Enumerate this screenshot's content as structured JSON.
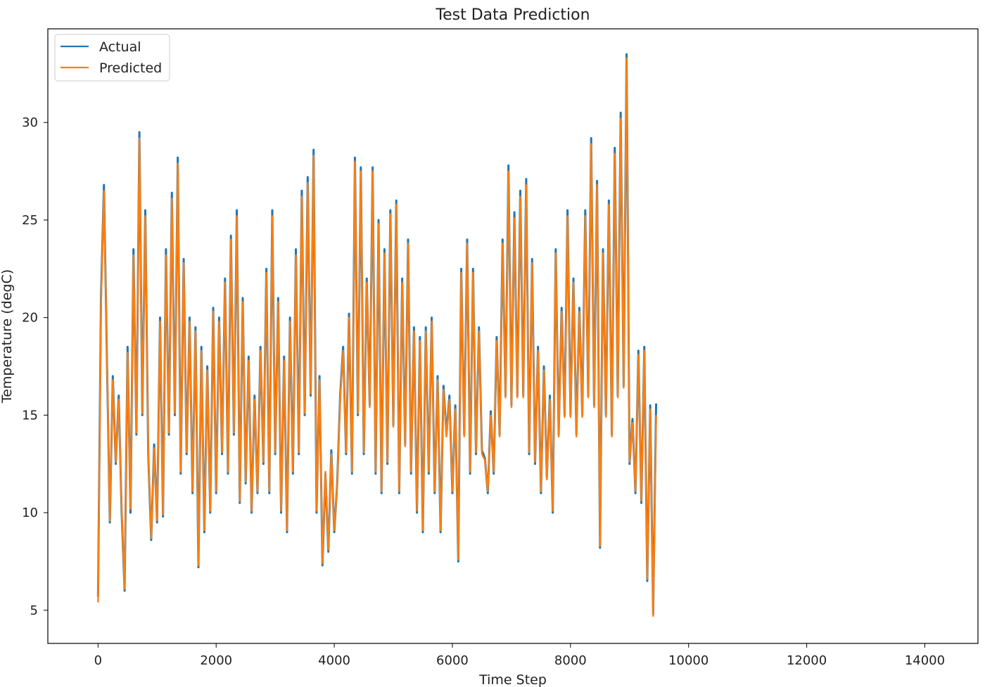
{
  "chart_data": {
    "type": "line",
    "title": "Test Data Prediction",
    "xlabel": "Time Step",
    "ylabel": "Temperature (degC)",
    "xlim": [
      -850,
      14900
    ],
    "ylim": [
      3.3,
      34.8
    ],
    "xticks": [
      0,
      2000,
      4000,
      6000,
      8000,
      10000,
      12000,
      14000
    ],
    "yticks": [
      5,
      10,
      15,
      20,
      25,
      30
    ],
    "grid": false,
    "legend": {
      "placement": "top-left"
    },
    "series": [
      {
        "name": "Actual",
        "color": "#1f77b4"
      },
      {
        "name": "Predicted",
        "color": "#ff7f0e"
      }
    ],
    "x_step": 50,
    "actual": [
      5.7,
      21.0,
      26.8,
      18.0,
      9.5,
      17.0,
      12.5,
      16.0,
      10.0,
      6.0,
      18.5,
      10.0,
      23.5,
      14.0,
      29.5,
      15.0,
      25.5,
      13.0,
      8.6,
      13.5,
      9.5,
      20.0,
      9.8,
      23.5,
      14.0,
      26.4,
      15.0,
      28.2,
      12.0,
      23.0,
      13.0,
      20.0,
      11.0,
      19.5,
      7.2,
      18.5,
      9.0,
      17.5,
      10.0,
      20.5,
      11.0,
      20.0,
      13.0,
      22.0,
      12.0,
      24.2,
      14.0,
      25.5,
      10.5,
      21.0,
      11.5,
      18.0,
      10.0,
      16.0,
      11.0,
      18.5,
      12.5,
      22.5,
      11.0,
      25.5,
      13.0,
      21.0,
      10.0,
      18.0,
      9.0,
      20.0,
      12.0,
      23.5,
      13.0,
      26.5,
      15.0,
      27.2,
      16.0,
      28.6,
      10.0,
      17.0,
      7.3,
      12.0,
      8.0,
      13.2,
      9.0,
      11.5,
      16.0,
      18.5,
      13.0,
      20.2,
      12.0,
      28.2,
      15.0,
      27.7,
      13.0,
      22.0,
      15.5,
      27.7,
      12.0,
      25.0,
      11.0,
      23.5,
      12.5,
      25.5,
      14.5,
      26.0,
      11.0,
      22.0,
      13.5,
      24.0,
      12.0,
      19.5,
      10.0,
      19.0,
      9.0,
      19.5,
      12.0,
      20.0,
      11.0,
      17.0,
      9.0,
      16.5,
      14.0,
      16.0,
      11.0,
      15.5,
      7.5,
      22.5,
      14.0,
      24.0,
      12.0,
      22.5,
      13.0,
      19.5,
      13.2,
      12.8,
      11.0,
      15.2,
      12.0,
      19.0,
      14.0,
      24.0,
      16.0,
      27.8,
      15.5,
      25.4,
      16.0,
      26.5,
      16.0,
      27.1,
      13.0,
      23.0,
      12.5,
      18.5,
      11.0,
      17.5,
      11.8,
      16.0,
      10.0,
      23.5,
      14.0,
      20.5,
      15.0,
      25.5,
      15.0,
      22.0,
      14.0,
      20.5,
      15.0,
      25.5,
      16.0,
      29.2,
      15.5,
      27.0,
      8.2,
      23.5,
      15.0,
      26.0,
      14.0,
      28.7,
      16.0,
      30.5,
      16.5,
      33.5,
      12.5,
      14.8,
      11.0,
      18.3,
      10.5,
      18.5,
      6.5,
      15.5,
      4.8,
      15.6
    ],
    "predicted": [
      5.4,
      20.5,
      26.5,
      18.2,
      9.6,
      16.8,
      12.6,
      15.8,
      10.2,
      6.1,
      18.2,
      10.2,
      23.2,
      14.1,
      29.2,
      15.1,
      25.2,
      13.1,
      8.7,
      13.3,
      9.6,
      19.8,
      9.9,
      23.2,
      14.1,
      26.1,
      15.1,
      27.9,
      12.1,
      22.8,
      13.1,
      19.8,
      11.1,
      19.3,
      7.3,
      18.3,
      9.1,
      17.3,
      10.1,
      20.3,
      11.1,
      19.8,
      13.1,
      21.8,
      12.1,
      24.0,
      14.1,
      25.2,
      10.6,
      20.8,
      11.6,
      17.8,
      10.1,
      15.8,
      11.1,
      18.3,
      12.6,
      22.3,
      11.1,
      25.2,
      13.1,
      20.8,
      10.1,
      17.8,
      9.1,
      19.8,
      12.1,
      23.2,
      13.1,
      26.2,
      15.1,
      26.9,
      16.1,
      28.3,
      10.1,
      16.8,
      7.4,
      12.1,
      8.1,
      13.0,
      9.1,
      11.4,
      15.8,
      18.3,
      13.1,
      20.0,
      12.1,
      28.0,
      15.1,
      27.5,
      13.1,
      21.8,
      15.4,
      27.5,
      12.1,
      24.8,
      11.1,
      23.3,
      12.6,
      25.3,
      14.4,
      25.8,
      11.1,
      21.8,
      13.4,
      23.8,
      12.1,
      19.3,
      10.1,
      18.8,
      9.1,
      19.3,
      12.1,
      19.8,
      11.1,
      16.8,
      9.1,
      16.3,
      13.9,
      15.8,
      11.1,
      15.3,
      7.6,
      22.3,
      13.9,
      23.8,
      12.1,
      22.3,
      13.1,
      19.3,
      13.0,
      12.7,
      11.1,
      15.0,
      12.1,
      18.8,
      13.9,
      23.8,
      15.9,
      27.5,
      15.4,
      25.1,
      15.9,
      26.2,
      15.9,
      26.8,
      13.1,
      22.8,
      12.6,
      18.3,
      11.1,
      17.3,
      11.7,
      15.8,
      10.1,
      23.3,
      13.9,
      20.3,
      14.9,
      25.2,
      14.9,
      21.8,
      13.9,
      20.3,
      14.9,
      25.2,
      15.9,
      28.9,
      15.4,
      26.8,
      8.3,
      23.3,
      14.9,
      25.8,
      13.9,
      28.4,
      15.9,
      30.2,
      16.4,
      33.3,
      12.6,
      14.6,
      11.1,
      18.1,
      10.6,
      18.3,
      6.6,
      15.3,
      4.7,
      15.0
    ]
  }
}
